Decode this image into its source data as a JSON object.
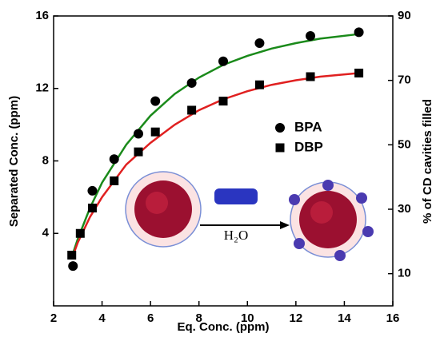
{
  "chart_data": {
    "type": "scatter",
    "xlabel": "Eq. Conc. (ppm)",
    "ylabel": "Separated Conc. (ppm)",
    "y2label": "% of CD cavities filled",
    "xlim": [
      2,
      16
    ],
    "xticks": [
      2,
      4,
      6,
      8,
      10,
      12,
      14,
      16
    ],
    "ylim": [
      0,
      16
    ],
    "yticks": [
      4,
      8,
      12,
      16
    ],
    "y2lim": [
      0,
      90
    ],
    "y2ticks": [
      10,
      30,
      50,
      70,
      90
    ],
    "legend": "right",
    "series": [
      {
        "name": "BPA",
        "marker": "circle",
        "color": "#000000",
        "x": [
          2.8,
          3.6,
          4.5,
          5.5,
          6.2,
          7.7,
          9.0,
          10.5,
          12.6,
          14.6
        ],
        "values": [
          2.2,
          6.35,
          8.1,
          9.5,
          11.3,
          12.3,
          13.5,
          14.5,
          14.9,
          15.1
        ]
      },
      {
        "name": "DBP",
        "marker": "square",
        "color": "#000000",
        "x": [
          2.75,
          3.1,
          3.6,
          4.5,
          5.5,
          6.2,
          7.7,
          9.0,
          10.5,
          12.6,
          14.6
        ],
        "values": [
          2.8,
          4.0,
          5.4,
          6.9,
          8.5,
          9.6,
          10.8,
          11.3,
          12.2,
          12.65,
          12.85
        ]
      }
    ],
    "fits": [
      {
        "color": "#1a8a1a",
        "x": [
          2.75,
          3,
          3.5,
          4,
          5,
          6,
          7,
          8,
          9,
          10,
          11,
          12,
          13,
          14.6
        ],
        "values": [
          2.7,
          3.7,
          5.4,
          6.8,
          8.9,
          10.5,
          11.7,
          12.6,
          13.3,
          13.8,
          14.2,
          14.5,
          14.75,
          15.0
        ]
      },
      {
        "color": "#e02020",
        "x": [
          2.75,
          3,
          3.5,
          4,
          5,
          6,
          7,
          8,
          9,
          10,
          11,
          12,
          13,
          14.6
        ],
        "values": [
          2.6,
          3.5,
          4.9,
          6.0,
          7.8,
          9.0,
          10.0,
          10.8,
          11.4,
          11.85,
          12.2,
          12.45,
          12.65,
          12.85
        ]
      }
    ],
    "annotation": "H₂O"
  }
}
